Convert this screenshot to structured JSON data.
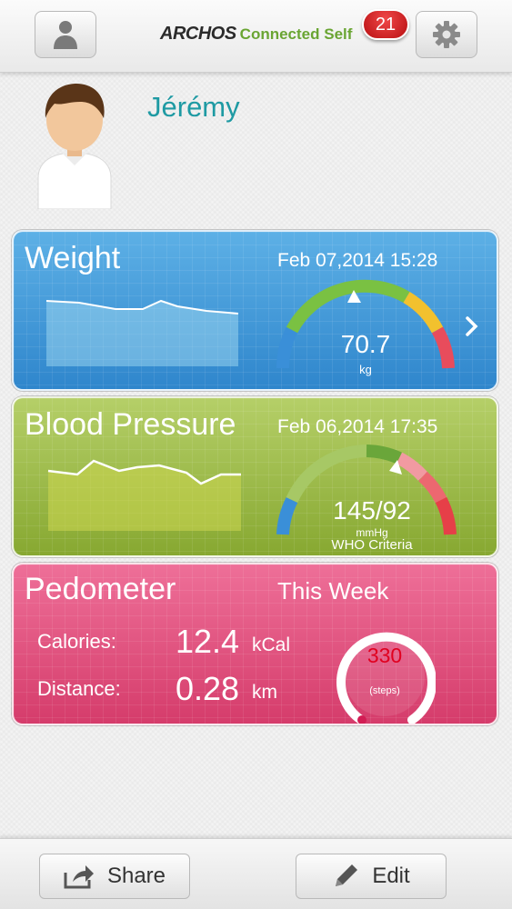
{
  "header": {
    "brand": "ARCHOS",
    "app_name": "Connected Self",
    "notification_count": "21",
    "profile_icon": "person-icon",
    "settings_icon": "gear-icon"
  },
  "profile": {
    "name": "Jérémy",
    "avatar": "user-avatar"
  },
  "cards": {
    "weight": {
      "title": "Weight",
      "date": "Feb 07,2014 15:28",
      "value": "70.7",
      "unit": "kg",
      "color": "#3d97d8"
    },
    "blood_pressure": {
      "title": "Blood Pressure",
      "date": "Feb 06,2014 17:35",
      "value": "145/92",
      "unit": "mmHg",
      "criteria": "WHO Criteria",
      "color": "#9fbe4a"
    },
    "pedometer": {
      "title": "Pedometer",
      "period": "This Week",
      "calories_label": "Calories:",
      "calories_value": "12.4",
      "calories_unit": "kCal",
      "distance_label": "Distance:",
      "distance_value": "0.28",
      "distance_unit": "km",
      "steps_value": "330",
      "steps_label": "(steps)",
      "color": "#e25181"
    }
  },
  "footer": {
    "share_label": "Share",
    "edit_label": "Edit"
  }
}
